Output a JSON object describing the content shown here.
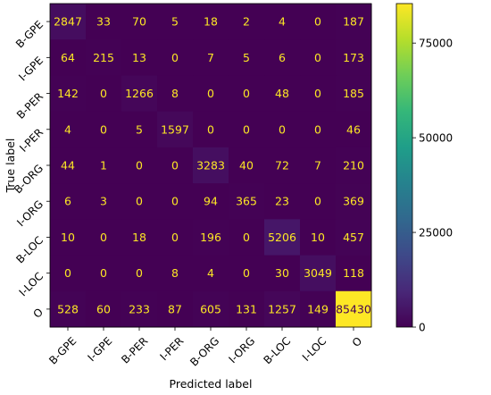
{
  "chart_data": {
    "type": "heatmap",
    "title": "",
    "xlabel": "Predicted label",
    "ylabel": "True label",
    "x_categories": [
      "B-GPE",
      "I-GPE",
      "B-PER",
      "I-PER",
      "B-ORG",
      "I-ORG",
      "B-LOC",
      "I-LOC",
      "O"
    ],
    "y_categories": [
      "B-GPE",
      "I-GPE",
      "B-PER",
      "I-PER",
      "B-ORG",
      "I-ORG",
      "B-LOC",
      "I-LOC",
      "O"
    ],
    "values": [
      [
        2847,
        33,
        70,
        5,
        18,
        2,
        4,
        0,
        187
      ],
      [
        64,
        215,
        13,
        0,
        7,
        5,
        6,
        0,
        173
      ],
      [
        142,
        0,
        1266,
        8,
        0,
        0,
        48,
        0,
        185
      ],
      [
        4,
        0,
        5,
        1597,
        0,
        0,
        0,
        0,
        46
      ],
      [
        44,
        1,
        0,
        0,
        3283,
        40,
        72,
        7,
        210
      ],
      [
        6,
        3,
        0,
        0,
        94,
        365,
        23,
        0,
        369
      ],
      [
        10,
        0,
        18,
        0,
        196,
        0,
        5206,
        10,
        457
      ],
      [
        0,
        0,
        0,
        8,
        4,
        0,
        30,
        3049,
        118
      ],
      [
        528,
        60,
        233,
        87,
        605,
        131,
        1257,
        149,
        85430
      ]
    ],
    "colormap": "viridis",
    "colorbar": {
      "range": [
        0,
        187500
      ],
      "ticks": [
        0,
        25000,
        50000,
        75000,
        100000,
        125000,
        150000,
        175000
      ]
    },
    "text_colors": {
      "low": "#fde725",
      "high": "#440154"
    },
    "x_tick_rotation": "45"
  }
}
